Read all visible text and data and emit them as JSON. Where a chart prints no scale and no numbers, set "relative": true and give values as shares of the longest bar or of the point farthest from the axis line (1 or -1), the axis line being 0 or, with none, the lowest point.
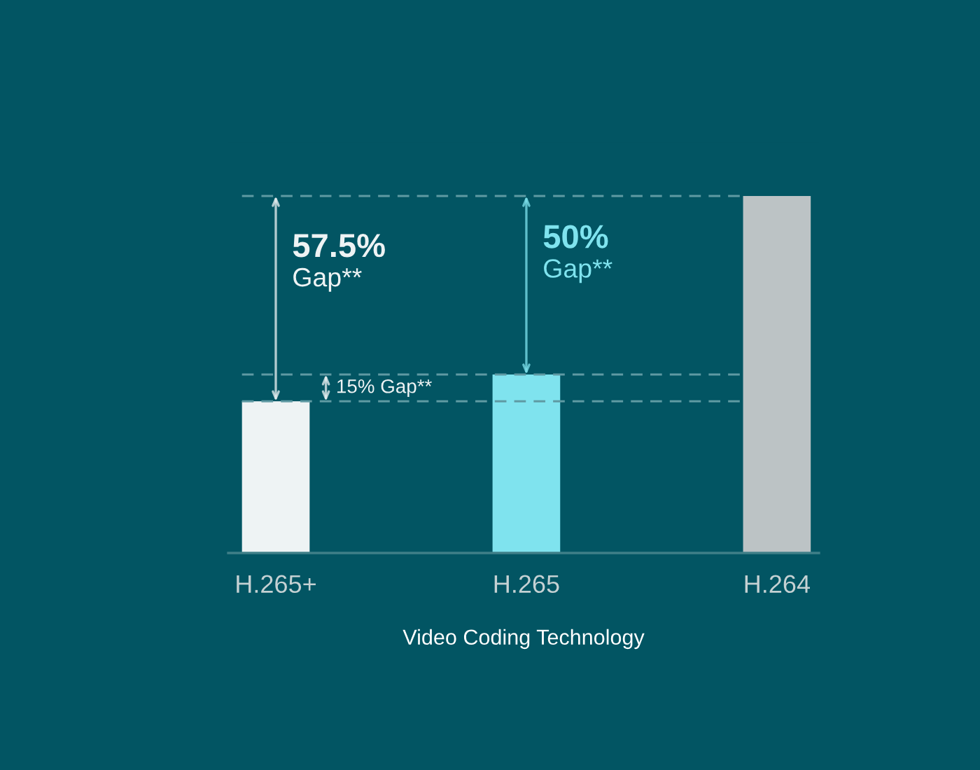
{
  "chart_data": {
    "type": "bar",
    "relative": true,
    "categories": [
      "H.265+",
      "H.265",
      "H.264"
    ],
    "values": [
      0.425,
      0.5,
      1
    ],
    "colors": [
      "#eef3f4",
      "#7fe3ee",
      "#bcc3c5"
    ],
    "xlabel": "Video Coding Technology",
    "annotations": [
      "57.5%\nGap**",
      "50%\nGap**",
      "15% Gap**"
    ],
    "ref_lines": [
      {
        "axis": "y",
        "value": 1,
        "color": "#5f9aa3",
        "line_style": "dashed"
      },
      {
        "axis": "y",
        "value": 0.5,
        "color": "#5f9aa3",
        "line_style": "dashed"
      },
      {
        "axis": "y",
        "value": 0.425,
        "color": "#5f9aa3",
        "line_style": "dashed"
      }
    ]
  }
}
